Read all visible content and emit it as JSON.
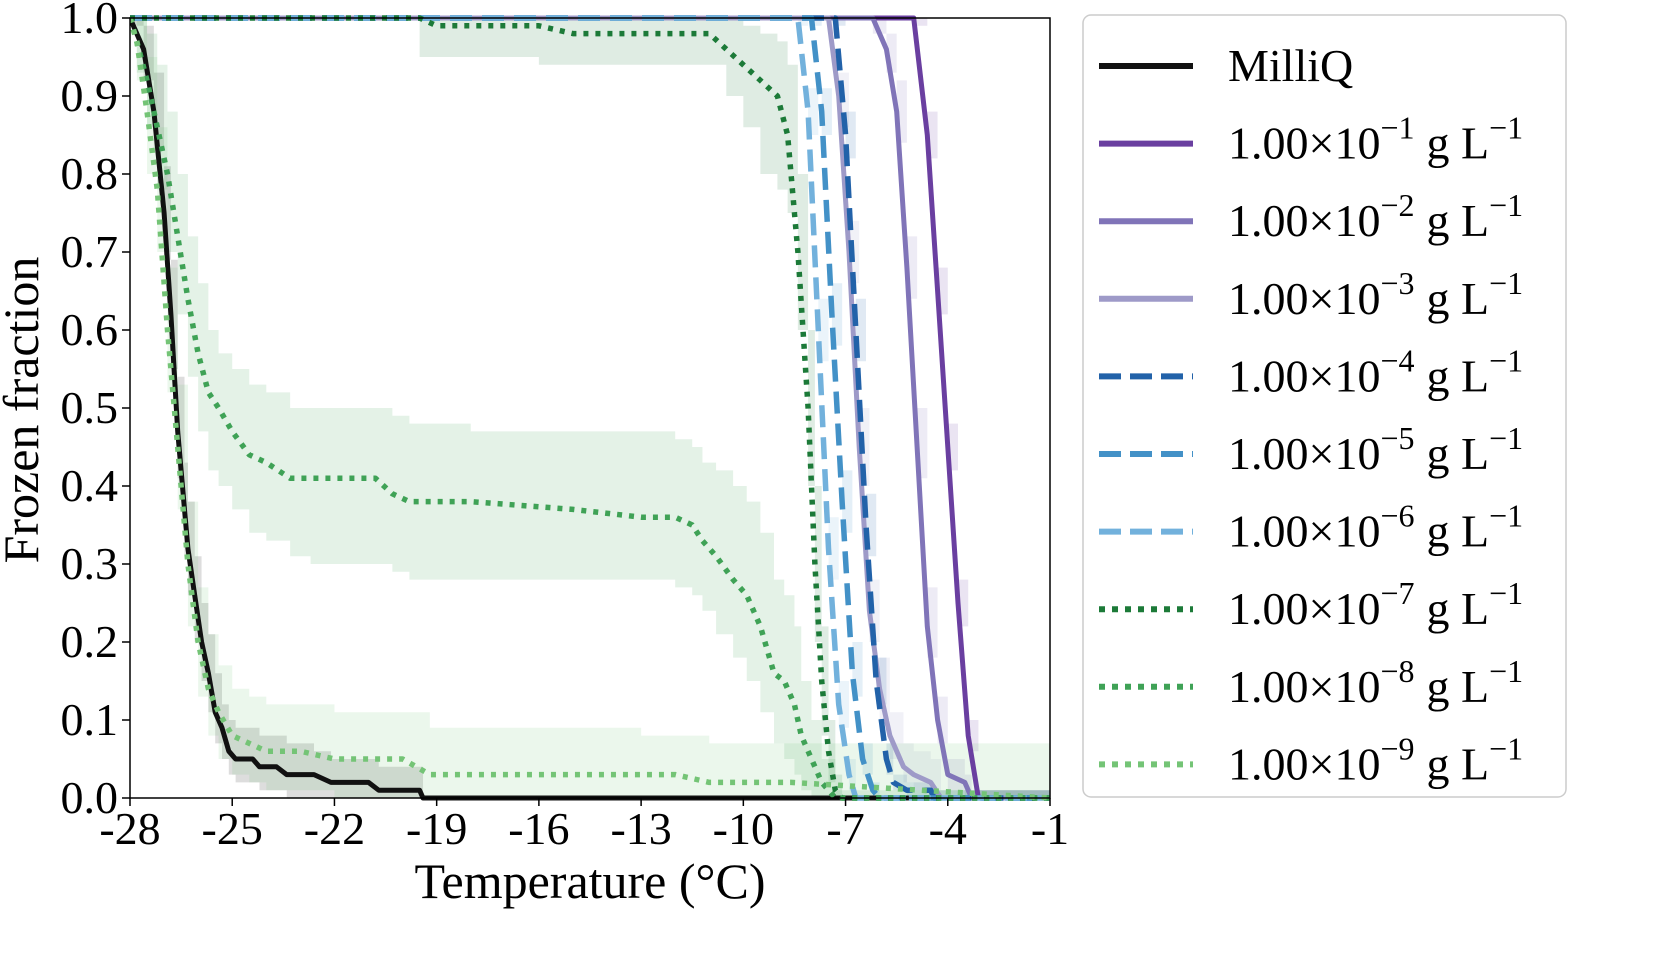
{
  "chart_data": {
    "type": "line",
    "xlabel": "Temperature (°C)",
    "ylabel": "Frozen fraction",
    "xlim": [
      -28,
      -1
    ],
    "ylim": [
      0.0,
      1.0
    ],
    "x_ticks": [
      -28,
      -25,
      -22,
      -19,
      -16,
      -13,
      -10,
      -7,
      -4,
      -1
    ],
    "x_tick_labels": [
      "-28",
      "-25",
      "-22",
      "-19",
      "-16",
      "-13",
      "-10",
      "-7",
      "-4",
      "-1"
    ],
    "y_ticks": [
      0.0,
      0.1,
      0.2,
      0.3,
      0.4,
      0.5,
      0.6,
      0.7,
      0.8,
      0.9,
      1.0
    ],
    "y_tick_labels": [
      "0.0",
      "0.1",
      "0.2",
      "0.3",
      "0.4",
      "0.5",
      "0.6",
      "0.7",
      "0.8",
      "0.9",
      "1.0"
    ],
    "grid": false,
    "legend_position": "outside-right",
    "series": [
      {
        "name": "MilliQ",
        "legend_base": "MilliQ",
        "legend_exp": "",
        "color": "#111111",
        "style": "solid",
        "x": [
          -28,
          -27.6,
          -27.3,
          -27.0,
          -26.8,
          -26.6,
          -26.4,
          -26.3,
          -26.1,
          -25.9,
          -25.7,
          -25.5,
          -25.3,
          -25.1,
          -24.9,
          -24.4,
          -24.2,
          -23.7,
          -23.4,
          -22.6,
          -22.1,
          -21.0,
          -20.7,
          -19.5,
          -19.4,
          -1
        ],
        "y": [
          1.0,
          0.96,
          0.88,
          0.75,
          0.62,
          0.47,
          0.37,
          0.32,
          0.26,
          0.2,
          0.16,
          0.11,
          0.09,
          0.06,
          0.05,
          0.05,
          0.04,
          0.04,
          0.03,
          0.03,
          0.02,
          0.02,
          0.01,
          0.01,
          0.0,
          0.0
        ],
        "band_upper": [
          1.0,
          0.99,
          0.93,
          0.81,
          0.69,
          0.54,
          0.43,
          0.38,
          0.31,
          0.25,
          0.21,
          0.16,
          0.12,
          0.1,
          0.09,
          0.09,
          0.08,
          0.08,
          0.07,
          0.06,
          0.05,
          0.05,
          0.04,
          0.04,
          0.0,
          0.0
        ],
        "band_lower": [
          0.99,
          0.92,
          0.83,
          0.69,
          0.55,
          0.41,
          0.31,
          0.26,
          0.2,
          0.15,
          0.11,
          0.07,
          0.05,
          0.03,
          0.02,
          0.02,
          0.01,
          0.01,
          0.0,
          0.0,
          0.0,
          0.0,
          0.0,
          0.0,
          0.0,
          0.0
        ]
      },
      {
        "name": "1.00×10^-1 g L^-1",
        "legend_base": "1.00×10",
        "legend_exp": "−1",
        "color": "#6a3fa0",
        "style": "solid",
        "x": [
          -28,
          -5.0,
          -4.6,
          -4.3,
          -4.0,
          -3.7,
          -3.4,
          -3.1,
          -1
        ],
        "y": [
          1.0,
          1.0,
          0.85,
          0.65,
          0.45,
          0.25,
          0.08,
          0.0,
          0.0
        ],
        "band_upper": [
          1.0,
          1.0,
          0.88,
          0.68,
          0.48,
          0.28,
          0.1,
          0.01,
          0.0
        ],
        "band_lower": [
          1.0,
          0.99,
          0.82,
          0.62,
          0.42,
          0.22,
          0.06,
          0.0,
          0.0
        ]
      },
      {
        "name": "1.00×10^-2 g L^-1",
        "legend_base": "1.00×10",
        "legend_exp": "−2",
        "color": "#8074b8",
        "style": "solid",
        "x": [
          -28,
          -6.2,
          -5.8,
          -5.5,
          -5.2,
          -4.9,
          -4.6,
          -4.3,
          -4.0,
          -3.5,
          -3.3,
          -1
        ],
        "y": [
          1.0,
          1.0,
          0.96,
          0.88,
          0.68,
          0.45,
          0.22,
          0.1,
          0.03,
          0.02,
          0.0,
          0.0
        ],
        "band_upper": [
          1.0,
          1.0,
          0.98,
          0.92,
          0.72,
          0.5,
          0.27,
          0.13,
          0.05,
          0.03,
          0.01,
          0.0
        ],
        "band_lower": [
          1.0,
          0.98,
          0.93,
          0.84,
          0.64,
          0.41,
          0.18,
          0.07,
          0.01,
          0.0,
          0.0,
          0.0
        ]
      },
      {
        "name": "1.00×10^-3 g L^-1",
        "legend_base": "1.00×10",
        "legend_exp": "−3",
        "color": "#9e9ac8",
        "style": "solid",
        "x": [
          -28,
          -7.5,
          -7.2,
          -6.9,
          -6.6,
          -6.3,
          -6.0,
          -5.7,
          -5.3,
          -5.0,
          -4.5,
          -4.2,
          -1
        ],
        "y": [
          1.0,
          1.0,
          0.9,
          0.7,
          0.45,
          0.24,
          0.14,
          0.08,
          0.04,
          0.03,
          0.02,
          0.0,
          0.0
        ],
        "band_upper": [
          1.0,
          1.0,
          0.93,
          0.74,
          0.5,
          0.28,
          0.18,
          0.11,
          0.07,
          0.06,
          0.05,
          0.01,
          0.0
        ],
        "band_lower": [
          1.0,
          0.98,
          0.86,
          0.66,
          0.4,
          0.2,
          0.1,
          0.05,
          0.02,
          0.01,
          0.0,
          0.0,
          0.0
        ]
      },
      {
        "name": "1.00×10^-4 g L^-1",
        "legend_base": "1.00×10",
        "legend_exp": "−4",
        "color": "#2262a9",
        "style": "dashed",
        "x": [
          -28,
          -7.3,
          -7.0,
          -6.7,
          -6.4,
          -6.1,
          -5.8,
          -5.6,
          -5.2,
          -4.5,
          -4.4,
          -1
        ],
        "y": [
          1.0,
          1.0,
          0.85,
          0.6,
          0.35,
          0.15,
          0.05,
          0.02,
          0.01,
          0.01,
          0.0,
          0.0
        ],
        "band_upper": [
          1.0,
          1.0,
          0.88,
          0.64,
          0.39,
          0.18,
          0.07,
          0.03,
          0.02,
          0.02,
          0.01,
          0.0
        ],
        "band_lower": [
          1.0,
          0.99,
          0.82,
          0.56,
          0.31,
          0.12,
          0.03,
          0.01,
          0.0,
          0.0,
          0.0,
          0.0
        ]
      },
      {
        "name": "1.00×10^-5 g L^-1",
        "legend_base": "1.00×10",
        "legend_exp": "−5",
        "color": "#4391c7",
        "style": "dashed",
        "x": [
          -28,
          -8.0,
          -7.7,
          -7.4,
          -7.1,
          -6.8,
          -6.5,
          -6.2,
          -6.0,
          -1
        ],
        "y": [
          1.0,
          1.0,
          0.88,
          0.62,
          0.38,
          0.16,
          0.05,
          0.01,
          0.0,
          0.0
        ],
        "band_upper": [
          1.0,
          1.0,
          0.91,
          0.66,
          0.42,
          0.2,
          0.07,
          0.02,
          0.0,
          0.0
        ],
        "band_lower": [
          1.0,
          0.99,
          0.85,
          0.58,
          0.34,
          0.13,
          0.03,
          0.0,
          0.0,
          0.0
        ]
      },
      {
        "name": "1.00×10^-6 g L^-1",
        "legend_base": "1.00×10",
        "legend_exp": "−6",
        "color": "#72b1dc",
        "style": "dashed",
        "x": [
          -28,
          -8.4,
          -8.1,
          -7.8,
          -7.5,
          -7.2,
          -6.9,
          -6.7,
          -1
        ],
        "y": [
          1.0,
          1.0,
          0.88,
          0.6,
          0.32,
          0.12,
          0.03,
          0.0,
          0.0
        ],
        "band_upper": [
          1.0,
          1.0,
          0.91,
          0.64,
          0.36,
          0.15,
          0.05,
          0.0,
          0.0
        ],
        "band_lower": [
          1.0,
          0.99,
          0.85,
          0.56,
          0.28,
          0.09,
          0.01,
          0.0,
          0.0
        ]
      },
      {
        "name": "1.00×10^-7 g L^-1",
        "legend_base": "1.00×10",
        "legend_exp": "−7",
        "color": "#1c7a38",
        "style": "dotted",
        "x": [
          -28,
          -19.5,
          -19.0,
          -18.0,
          -17.0,
          -16.0,
          -15.0,
          -14.0,
          -13.0,
          -12.0,
          -11.0,
          -10.5,
          -10.0,
          -9.5,
          -9.0,
          -8.7,
          -8.4,
          -8.1,
          -7.9,
          -7.7,
          -7.5,
          -7.3,
          -7.1,
          -1
        ],
        "y": [
          1.0,
          1.0,
          0.99,
          0.99,
          0.99,
          0.99,
          0.98,
          0.98,
          0.98,
          0.98,
          0.98,
          0.96,
          0.94,
          0.92,
          0.9,
          0.85,
          0.7,
          0.5,
          0.3,
          0.15,
          0.06,
          0.01,
          0.0,
          0.0
        ],
        "band_upper": [
          1.0,
          1.0,
          1.0,
          1.0,
          1.0,
          1.0,
          1.0,
          1.0,
          1.0,
          1.0,
          1.0,
          1.0,
          0.99,
          0.98,
          0.97,
          0.94,
          0.8,
          0.6,
          0.4,
          0.22,
          0.1,
          0.03,
          0.0,
          0.0
        ],
        "band_lower": [
          1.0,
          0.95,
          0.95,
          0.95,
          0.95,
          0.94,
          0.94,
          0.94,
          0.94,
          0.94,
          0.94,
          0.9,
          0.86,
          0.8,
          0.78,
          0.75,
          0.6,
          0.4,
          0.2,
          0.08,
          0.02,
          0.0,
          0.0,
          0.0
        ]
      },
      {
        "name": "1.00×10^-8 g L^-1",
        "legend_base": "1.00×10",
        "legend_exp": "−8",
        "color": "#3fa256",
        "style": "dotted",
        "x": [
          -28,
          -27.8,
          -27.5,
          -27.2,
          -26.9,
          -26.6,
          -26.3,
          -26.0,
          -25.7,
          -25.4,
          -25.0,
          -24.5,
          -24.0,
          -23.3,
          -22.7,
          -20.8,
          -20.3,
          -19.8,
          -18.0,
          -15.0,
          -13.0,
          -12.0,
          -11.5,
          -11.2,
          -10.8,
          -10.3,
          -9.9,
          -9.5,
          -9.1,
          -8.8,
          -8.5,
          -8.3,
          -8.0,
          -7.7,
          -7.3,
          -1
        ],
        "y": [
          1.0,
          0.97,
          0.92,
          0.86,
          0.8,
          0.72,
          0.64,
          0.57,
          0.52,
          0.5,
          0.47,
          0.44,
          0.43,
          0.41,
          0.41,
          0.41,
          0.39,
          0.38,
          0.38,
          0.37,
          0.36,
          0.36,
          0.35,
          0.33,
          0.31,
          0.28,
          0.26,
          0.22,
          0.16,
          0.15,
          0.12,
          0.08,
          0.05,
          0.02,
          0.0,
          0.0
        ],
        "band_upper": [
          1.0,
          1.0,
          0.98,
          0.94,
          0.88,
          0.8,
          0.72,
          0.66,
          0.6,
          0.57,
          0.55,
          0.53,
          0.52,
          0.5,
          0.5,
          0.5,
          0.49,
          0.48,
          0.47,
          0.47,
          0.47,
          0.46,
          0.45,
          0.43,
          0.42,
          0.4,
          0.38,
          0.34,
          0.28,
          0.26,
          0.22,
          0.15,
          0.1,
          0.05,
          0.01,
          0.0
        ],
        "band_lower": [
          1.0,
          0.93,
          0.86,
          0.78,
          0.7,
          0.62,
          0.54,
          0.47,
          0.42,
          0.4,
          0.37,
          0.34,
          0.33,
          0.31,
          0.3,
          0.3,
          0.29,
          0.28,
          0.28,
          0.28,
          0.28,
          0.27,
          0.26,
          0.24,
          0.21,
          0.18,
          0.15,
          0.11,
          0.07,
          0.05,
          0.03,
          0.01,
          0.0,
          0.0,
          0.0,
          0.0
        ]
      },
      {
        "name": "1.00×10^-9 g L^-1",
        "legend_base": "1.00×10",
        "legend_exp": "−9",
        "color": "#74c476",
        "style": "dotted",
        "x": [
          -28,
          -27.8,
          -27.5,
          -27.2,
          -26.9,
          -26.6,
          -26.3,
          -26.0,
          -25.7,
          -25.4,
          -25.0,
          -24.5,
          -24.0,
          -23.0,
          -22.0,
          -21.0,
          -20.0,
          -19.2,
          -18.5,
          -17.0,
          -15.0,
          -13.0,
          -12.0,
          -11.0,
          -8.6,
          -1
        ],
        "y": [
          1.0,
          0.97,
          0.88,
          0.78,
          0.6,
          0.45,
          0.3,
          0.2,
          0.14,
          0.11,
          0.08,
          0.07,
          0.06,
          0.06,
          0.05,
          0.05,
          0.05,
          0.03,
          0.03,
          0.03,
          0.03,
          0.03,
          0.03,
          0.02,
          0.02,
          0.0
        ],
        "band_upper": [
          1.0,
          1.0,
          0.95,
          0.86,
          0.68,
          0.53,
          0.38,
          0.27,
          0.21,
          0.17,
          0.14,
          0.13,
          0.12,
          0.12,
          0.11,
          0.11,
          0.11,
          0.09,
          0.09,
          0.09,
          0.09,
          0.08,
          0.08,
          0.07,
          0.07,
          0.0
        ],
        "band_lower": [
          0.99,
          0.92,
          0.8,
          0.7,
          0.52,
          0.37,
          0.22,
          0.13,
          0.08,
          0.05,
          0.03,
          0.02,
          0.01,
          0.01,
          0.0,
          0.0,
          0.0,
          0.0,
          0.0,
          0.0,
          0.0,
          0.0,
          0.0,
          0.0,
          0.0,
          0.0
        ]
      }
    ],
    "legend_unit": "g L",
    "legend_unit_exp": "−1"
  }
}
